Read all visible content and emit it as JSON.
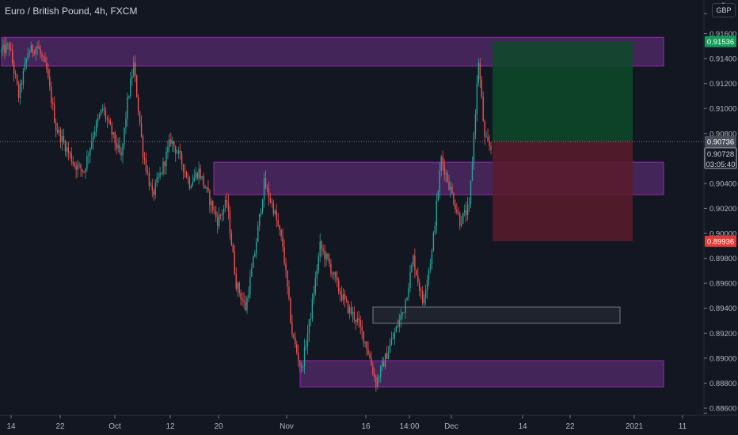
{
  "symbol": {
    "name": "Euro / British Pound",
    "timeframe": "4h",
    "exchange": "FXCM",
    "currency": "GBP"
  },
  "colors": {
    "background": "#131722",
    "up": "#26a69a",
    "down": "#ef5350",
    "zone_purple": "#5b2a6e",
    "zone_border": "#9c27b0",
    "target_green": "#0e3b26",
    "stop_red": "#4d1a24",
    "target_badge": "#0f9d58",
    "stop_badge": "#e53935"
  },
  "chart_data": {
    "type": "candlestick",
    "y_axis": {
      "ticks": [
        "0.91600",
        "0.91400",
        "0.91200",
        "0.91000",
        "0.90800",
        "0.90600",
        "0.90400",
        "0.90200",
        "0.90000",
        "0.89800",
        "0.89600",
        "0.89400",
        "0.89200",
        "0.89000",
        "0.88800",
        "0.88600"
      ],
      "range": [
        0.8856,
        0.9176
      ]
    },
    "x_axis": {
      "ticks": [
        "14",
        "22",
        "Oct",
        "12",
        "20",
        "Nov",
        "16",
        "14:00",
        "Dec",
        "14",
        "22",
        "2021",
        "11"
      ]
    },
    "price_lines": {
      "last_price": "0.90736",
      "bid_price": "0.90728",
      "countdown": "03:05:40",
      "target": "0.91536",
      "stop": "0.89936"
    },
    "zones": [
      {
        "name": "upper-resistance-zone",
        "from": 0.9134,
        "to": 0.9157
      },
      {
        "name": "middle-supply-zone",
        "from": 0.9031,
        "to": 0.9057
      },
      {
        "name": "gray-level-zone",
        "from": 0.8928,
        "to": 0.8941
      },
      {
        "name": "lower-support-zone",
        "from": 0.8877,
        "to": 0.8898
      }
    ],
    "path_points": [
      [
        0,
        0.9145
      ],
      [
        3,
        0.915
      ],
      [
        6,
        0.911
      ],
      [
        9,
        0.9145
      ],
      [
        12,
        0.915
      ],
      [
        15,
        0.913
      ],
      [
        18,
        0.9085
      ],
      [
        21,
        0.907
      ],
      [
        24,
        0.9055
      ],
      [
        27,
        0.905
      ],
      [
        30,
        0.908
      ],
      [
        33,
        0.91
      ],
      [
        36,
        0.908
      ],
      [
        39,
        0.906
      ],
      [
        41,
        0.9105
      ],
      [
        43,
        0.9135
      ],
      [
        46,
        0.9065
      ],
      [
        49,
        0.903
      ],
      [
        52,
        0.905
      ],
      [
        55,
        0.9075
      ],
      [
        58,
        0.906
      ],
      [
        61,
        0.904
      ],
      [
        64,
        0.905
      ],
      [
        67,
        0.903
      ],
      [
        70,
        0.901
      ],
      [
        73,
        0.9025
      ],
      [
        76,
        0.896
      ],
      [
        79,
        0.894
      ],
      [
        82,
        0.8985
      ],
      [
        85,
        0.904
      ],
      [
        88,
        0.902
      ],
      [
        91,
        0.899
      ],
      [
        94,
        0.892
      ],
      [
        97,
        0.889
      ],
      [
        100,
        0.8935
      ],
      [
        103,
        0.899
      ],
      [
        106,
        0.8975
      ],
      [
        109,
        0.8955
      ],
      [
        112,
        0.894
      ],
      [
        115,
        0.893
      ],
      [
        118,
        0.891
      ],
      [
        121,
        0.888
      ],
      [
        124,
        0.89
      ],
      [
        127,
        0.892
      ],
      [
        130,
        0.894
      ],
      [
        133,
        0.898
      ],
      [
        136,
        0.8945
      ],
      [
        139,
        0.8985
      ],
      [
        142,
        0.906
      ],
      [
        145,
        0.9035
      ],
      [
        148,
        0.901
      ],
      [
        151,
        0.902
      ],
      [
        154,
        0.9138
      ],
      [
        156,
        0.9075
      ],
      [
        158,
        0.9068
      ]
    ]
  },
  "position_tool": {
    "entry": 0.90736,
    "target": 0.91536,
    "stop": 0.89936
  }
}
